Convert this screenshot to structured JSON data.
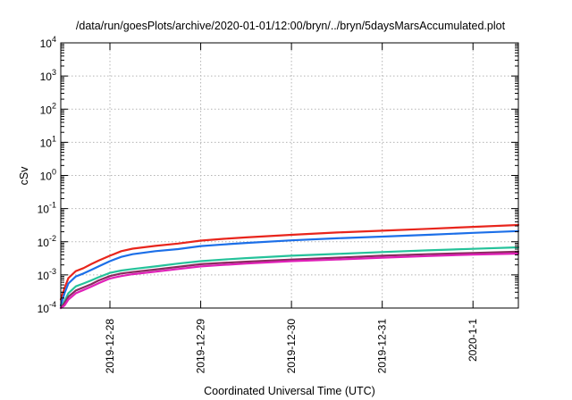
{
  "chart_data": {
    "type": "line",
    "title": "/data/run/goesPlots/archive/2020-01-01/12:00/bryn/../bryn/5daysMarsAccumulated.plot",
    "xlabel": "Coordinated Universal Time (UTC)",
    "ylabel": "cSv",
    "y_scale": "log",
    "ylim": [
      0.0001,
      10000
    ],
    "y_ticks": [
      {
        "value": 0.0001,
        "base": "10",
        "exp": "-4"
      },
      {
        "value": 0.001,
        "base": "10",
        "exp": "-3"
      },
      {
        "value": 0.01,
        "base": "10",
        "exp": "-2"
      },
      {
        "value": 0.1,
        "base": "10",
        "exp": "-1"
      },
      {
        "value": 1,
        "base": "10",
        "exp": "0"
      },
      {
        "value": 10,
        "base": "10",
        "exp": "1"
      },
      {
        "value": 100,
        "base": "10",
        "exp": "2"
      },
      {
        "value": 1000,
        "base": "10",
        "exp": "3"
      },
      {
        "value": 10000,
        "base": "10",
        "exp": "4"
      }
    ],
    "xlim": [
      "2019-12-27 11:00",
      "2020-01-01 12:00"
    ],
    "x_ticks": [
      {
        "value": "2019-12-28 00:00",
        "label": "2019-12-28"
      },
      {
        "value": "2019-12-29 00:00",
        "label": "2019-12-29"
      },
      {
        "value": "2019-12-30 00:00",
        "label": "2019-12-30"
      },
      {
        "value": "2019-12-31 00:00",
        "label": "2019-12-31"
      },
      {
        "value": "2020-01-01 00:00",
        "label": "2020-1-1"
      }
    ],
    "grid": true,
    "series": [
      {
        "color": "#e8251c",
        "points": [
          [
            "2019-12-27 11:00",
            0.00018
          ],
          [
            "2019-12-27 12:00",
            0.0004
          ],
          [
            "2019-12-27 13:00",
            0.0008
          ],
          [
            "2019-12-27 15:00",
            0.0013
          ],
          [
            "2019-12-27 17:00",
            0.0016
          ],
          [
            "2019-12-27 19:00",
            0.0021
          ],
          [
            "2019-12-27 21:00",
            0.0027
          ],
          [
            "2019-12-28 00:00",
            0.0038
          ],
          [
            "2019-12-28 03:00",
            0.0052
          ],
          [
            "2019-12-28 06:00",
            0.0062
          ],
          [
            "2019-12-28 12:00",
            0.0075
          ],
          [
            "2019-12-28 18:00",
            0.0088
          ],
          [
            "2019-12-29 00:00",
            0.0108
          ],
          [
            "2019-12-29 06:00",
            0.0122
          ],
          [
            "2019-12-29 12:00",
            0.0135
          ],
          [
            "2019-12-30 00:00",
            0.0162
          ],
          [
            "2019-12-30 12:00",
            0.019
          ],
          [
            "2019-12-31 00:00",
            0.0215
          ],
          [
            "2019-12-31 12:00",
            0.0245
          ],
          [
            "2020-01-01 00:00",
            0.028
          ],
          [
            "2020-01-01 12:00",
            0.032
          ]
        ]
      },
      {
        "color": "#1c6fe8",
        "points": [
          [
            "2019-12-27 11:00",
            0.00012
          ],
          [
            "2019-12-27 12:00",
            0.00028
          ],
          [
            "2019-12-27 13:00",
            0.00055
          ],
          [
            "2019-12-27 15:00",
            0.0009
          ],
          [
            "2019-12-27 17:00",
            0.0011
          ],
          [
            "2019-12-27 19:00",
            0.0014
          ],
          [
            "2019-12-27 21:00",
            0.0018
          ],
          [
            "2019-12-28 00:00",
            0.0026
          ],
          [
            "2019-12-28 03:00",
            0.0035
          ],
          [
            "2019-12-28 06:00",
            0.0042
          ],
          [
            "2019-12-28 12:00",
            0.0052
          ],
          [
            "2019-12-28 18:00",
            0.006
          ],
          [
            "2019-12-29 00:00",
            0.0074
          ],
          [
            "2019-12-29 06:00",
            0.0083
          ],
          [
            "2019-12-29 12:00",
            0.0092
          ],
          [
            "2019-12-30 00:00",
            0.011
          ],
          [
            "2019-12-30 12:00",
            0.0127
          ],
          [
            "2019-12-31 00:00",
            0.0143
          ],
          [
            "2019-12-31 12:00",
            0.0162
          ],
          [
            "2020-01-01 00:00",
            0.0185
          ],
          [
            "2020-01-01 12:00",
            0.021
          ]
        ]
      },
      {
        "color": "#25c29a",
        "points": [
          [
            "2019-12-27 11:00",
            0.0001
          ],
          [
            "2019-12-27 12:00",
            0.00016
          ],
          [
            "2019-12-27 13:00",
            0.00028
          ],
          [
            "2019-12-27 15:00",
            0.00045
          ],
          [
            "2019-12-27 17:00",
            0.00055
          ],
          [
            "2019-12-27 19:00",
            0.00068
          ],
          [
            "2019-12-27 21:00",
            0.00085
          ],
          [
            "2019-12-28 00:00",
            0.00115
          ],
          [
            "2019-12-28 03:00",
            0.00135
          ],
          [
            "2019-12-28 06:00",
            0.0015
          ],
          [
            "2019-12-28 12:00",
            0.0018
          ],
          [
            "2019-12-28 18:00",
            0.0022
          ],
          [
            "2019-12-29 00:00",
            0.0026
          ],
          [
            "2019-12-29 06:00",
            0.0029
          ],
          [
            "2019-12-29 12:00",
            0.0032
          ],
          [
            "2019-12-30 00:00",
            0.0038
          ],
          [
            "2019-12-30 12:00",
            0.0043
          ],
          [
            "2019-12-31 00:00",
            0.0049
          ],
          [
            "2019-12-31 12:00",
            0.0055
          ],
          [
            "2020-01-01 00:00",
            0.0061
          ],
          [
            "2020-01-01 12:00",
            0.0068
          ]
        ]
      },
      {
        "color": "#8a2a5e",
        "points": [
          [
            "2019-12-27 11:00",
            0.0001
          ],
          [
            "2019-12-27 12:00",
            0.00014
          ],
          [
            "2019-12-27 13:00",
            0.00022
          ],
          [
            "2019-12-27 15:00",
            0.00034
          ],
          [
            "2019-12-27 17:00",
            0.00042
          ],
          [
            "2019-12-27 19:00",
            0.00052
          ],
          [
            "2019-12-27 21:00",
            0.00068
          ],
          [
            "2019-12-28 00:00",
            0.00092
          ],
          [
            "2019-12-28 03:00",
            0.0011
          ],
          [
            "2019-12-28 06:00",
            0.00122
          ],
          [
            "2019-12-28 12:00",
            0.00145
          ],
          [
            "2019-12-28 18:00",
            0.00175
          ],
          [
            "2019-12-29 00:00",
            0.0021
          ],
          [
            "2019-12-29 06:00",
            0.0023
          ],
          [
            "2019-12-29 12:00",
            0.0025
          ],
          [
            "2019-12-30 00:00",
            0.0029
          ],
          [
            "2019-12-30 12:00",
            0.0033
          ],
          [
            "2019-12-31 00:00",
            0.0038
          ],
          [
            "2019-12-31 12:00",
            0.0042
          ],
          [
            "2020-01-01 00:00",
            0.0046
          ],
          [
            "2020-01-01 12:00",
            0.005
          ]
        ]
      },
      {
        "color": "#e020b8",
        "points": [
          [
            "2019-12-27 11:00",
            0.0001
          ],
          [
            "2019-12-27 12:00",
            0.00012
          ],
          [
            "2019-12-27 13:00",
            0.00018
          ],
          [
            "2019-12-27 15:00",
            0.00028
          ],
          [
            "2019-12-27 17:00",
            0.00035
          ],
          [
            "2019-12-27 19:00",
            0.00044
          ],
          [
            "2019-12-27 21:00",
            0.00056
          ],
          [
            "2019-12-28 00:00",
            0.00078
          ],
          [
            "2019-12-28 03:00",
            0.00092
          ],
          [
            "2019-12-28 06:00",
            0.00105
          ],
          [
            "2019-12-28 12:00",
            0.00125
          ],
          [
            "2019-12-28 18:00",
            0.0015
          ],
          [
            "2019-12-29 00:00",
            0.0018
          ],
          [
            "2019-12-29 06:00",
            0.002
          ],
          [
            "2019-12-29 12:00",
            0.0022
          ],
          [
            "2019-12-30 00:00",
            0.0026
          ],
          [
            "2019-12-30 12:00",
            0.0029
          ],
          [
            "2019-12-31 00:00",
            0.0033
          ],
          [
            "2019-12-31 12:00",
            0.0037
          ],
          [
            "2020-01-01 00:00",
            0.0041
          ],
          [
            "2020-01-01 12:00",
            0.0044
          ]
        ]
      }
    ]
  }
}
